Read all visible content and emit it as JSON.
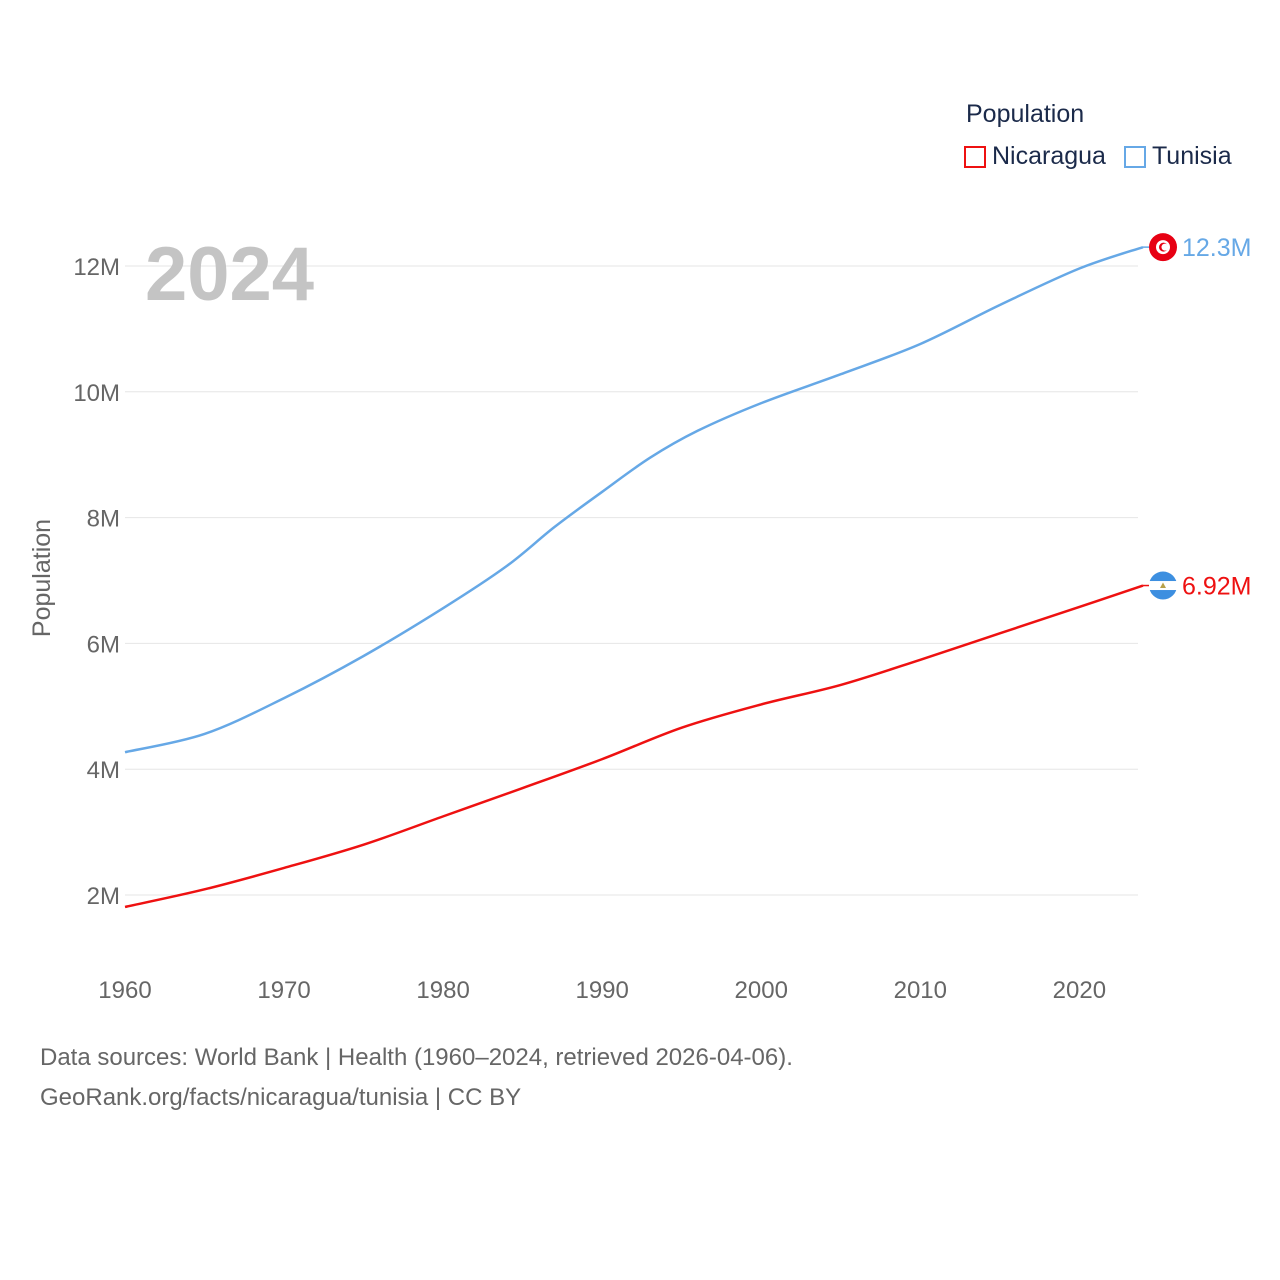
{
  "legend": {
    "title": "Population",
    "items": [
      {
        "label": "Nicaragua",
        "color": "#ee1111"
      },
      {
        "label": "Tunisia",
        "color": "#66a8e6"
      }
    ]
  },
  "footer": {
    "line1": "Data sources: World Bank | Health (1960–2024, retrieved 2026-04-06).",
    "line2": "GeoRank.org/facts/nicaragua/tunisia | CC BY"
  },
  "chart_data": {
    "type": "line",
    "year_label": "2024",
    "ylabel": "Population",
    "xlabel": "",
    "xlim": [
      1960,
      2024
    ],
    "ylim": [
      1000000,
      13000000
    ],
    "x_ticks": [
      1960,
      1970,
      1980,
      1990,
      2000,
      2010,
      2020
    ],
    "y_ticks": [
      2000000,
      4000000,
      6000000,
      8000000,
      10000000,
      12000000
    ],
    "y_tick_labels": [
      "2M",
      "4M",
      "6M",
      "8M",
      "10M",
      "12M"
    ],
    "x_tick_labels": [
      "1960",
      "1970",
      "1980",
      "1990",
      "2000",
      "2010",
      "2020"
    ],
    "series": [
      {
        "name": "Tunisia",
        "color": "#66a8e6",
        "end_label": "12.3M",
        "x": [
          1960,
          1965,
          1970,
          1975,
          1980,
          1984,
          1987,
          1990,
          1993,
          1996,
          2000,
          2005,
          2010,
          2015,
          2020,
          2024
        ],
        "y": [
          4270000,
          4560000,
          5130000,
          5800000,
          6560000,
          7230000,
          7850000,
          8410000,
          8950000,
          9380000,
          9820000,
          10280000,
          10760000,
          11380000,
          11960000,
          12300000
        ]
      },
      {
        "name": "Nicaragua",
        "color": "#ee1111",
        "end_label": "6.92M",
        "x": [
          1960,
          1965,
          1970,
          1975,
          1980,
          1985,
          1990,
          1995,
          2000,
          2005,
          2010,
          2015,
          2020,
          2024
        ],
        "y": [
          1810000,
          2090000,
          2430000,
          2800000,
          3250000,
          3700000,
          4160000,
          4660000,
          5030000,
          5340000,
          5740000,
          6160000,
          6580000,
          6920000
        ]
      }
    ]
  }
}
